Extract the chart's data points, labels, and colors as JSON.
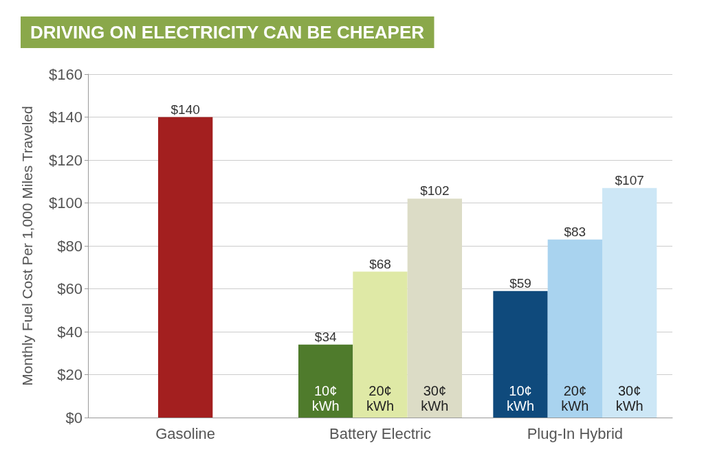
{
  "chart_data": {
    "type": "bar",
    "title": "DRIVING ON ELECTRICITY CAN BE CHEAPER",
    "ylabel": "Monthly Fuel Cost Per 1,000 Miles Traveled",
    "categories": [
      "Gasoline",
      "Battery Electric",
      "Plug-In Hybrid"
    ],
    "series": [
      {
        "colors": [
          "#a31f1f",
          null,
          null
        ],
        "values": [
          140,
          null,
          null
        ],
        "value_labels": [
          "$140",
          null,
          null
        ]
      },
      {
        "name": "10¢ kWh",
        "colors": [
          null,
          "#4f7b2c",
          "#0f4a7c"
        ],
        "values": [
          null,
          34,
          59
        ],
        "value_labels": [
          null,
          "$34",
          "$59"
        ]
      },
      {
        "name": "20¢ kWh",
        "colors": [
          null,
          "#dfe9a6",
          "#a9d3ef"
        ],
        "values": [
          null,
          68,
          83
        ],
        "value_labels": [
          null,
          "$68",
          "$83"
        ]
      },
      {
        "name": "30¢ kWh",
        "colors": [
          null,
          "#dcdcc6",
          "#cde7f6"
        ],
        "values": [
          null,
          102,
          107
        ],
        "value_labels": [
          null,
          "$102",
          "$107"
        ]
      }
    ],
    "ylim": [
      0,
      160
    ],
    "yticks": [
      {
        "value": 0,
        "label": "$0"
      },
      {
        "value": 20,
        "label": "$20"
      },
      {
        "value": 40,
        "label": "$40"
      },
      {
        "value": 60,
        "label": "$60"
      },
      {
        "value": 80,
        "label": "$80"
      },
      {
        "value": 100,
        "label": "$100"
      },
      {
        "value": 120,
        "label": "$120"
      },
      {
        "value": 140,
        "label": "$140"
      },
      {
        "value": 160,
        "label": "$160"
      }
    ],
    "grid": "y",
    "legend": false
  }
}
